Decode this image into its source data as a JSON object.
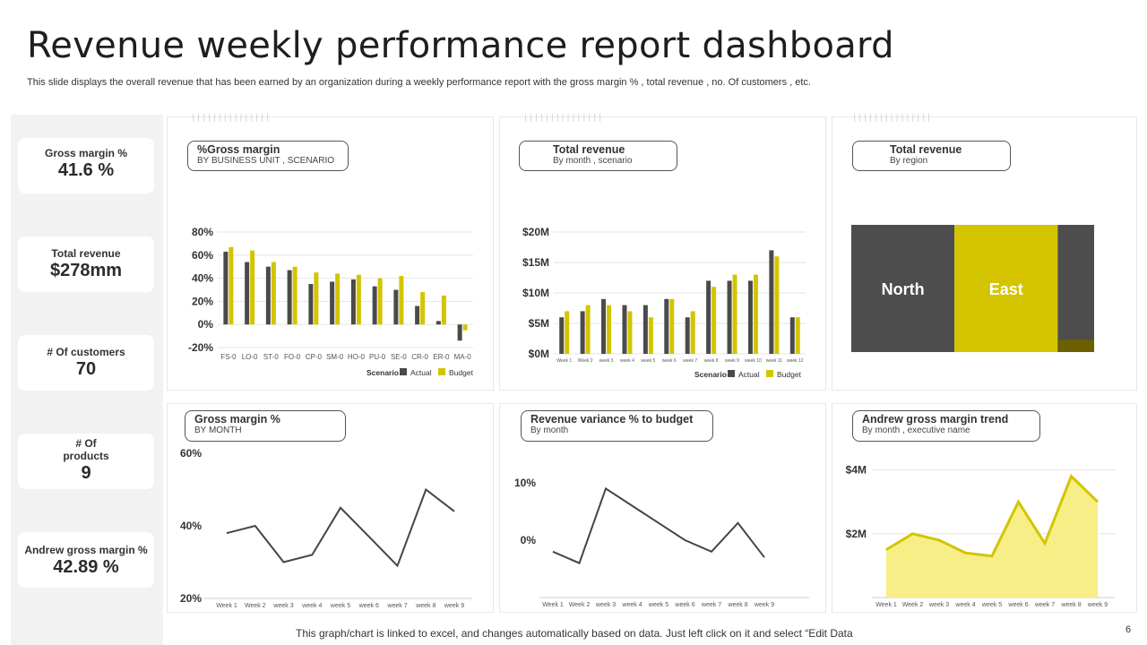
{
  "header": {
    "title": "Revenue weekly performance report dashboard",
    "subtitle": "This slide displays the overall revenue that has been earned by an organization during a weekly performance report with the gross margin % , total revenue , no. Of customers , etc."
  },
  "kpis": [
    {
      "label": "Gross margin %",
      "value": "41.6 %"
    },
    {
      "label": "Total revenue",
      "value": "$278mm"
    },
    {
      "label": "# Of customers",
      "value": "70"
    },
    {
      "label": "# Of products",
      "value": "9"
    },
    {
      "label": "Andrew gross margin %",
      "value": "42.89 %"
    }
  ],
  "colors": {
    "actual": "#4a4a4a",
    "budget": "#d4c400",
    "line": "#454545",
    "area_fill": "#f7ee87",
    "area_line": "#d4c400",
    "treemap_north": "#4d4d4d",
    "treemap_east": "#d4c400",
    "treemap_dark": "#6b5f00"
  },
  "decor": {
    "tick_strip": "|||||||||||||||"
  },
  "panels": {
    "gm_business": {
      "title": "%Gross  margin",
      "subtitle": "BY BUSINESS  UNIT  , SCENARIO"
    },
    "rev_month": {
      "title": "Total revenue",
      "subtitle": "By month  , scenario"
    },
    "rev_region": {
      "title": "Total revenue",
      "subtitle": "By region"
    },
    "gm_month": {
      "title": "Gross  margin %",
      "subtitle": "BY MONTH"
    },
    "variance": {
      "title": "Revenue variance % to budget",
      "subtitle": "By month"
    },
    "andrew": {
      "title": "Andrew gross  margin trend",
      "subtitle": "By month  , executive name"
    }
  },
  "chart_data": [
    {
      "id": "gm_business",
      "type": "bar",
      "categories": [
        "FS-0",
        "LO-0",
        "ST-0",
        "FO-0",
        "CP-0",
        "SM-0",
        "HO-0",
        "PU-0",
        "SE-0",
        "CR-0",
        "ER-0",
        "MA-0"
      ],
      "series": [
        {
          "name": "Actual",
          "values": [
            63,
            54,
            50,
            47,
            35,
            37,
            39,
            33,
            30,
            16,
            3,
            -14
          ]
        },
        {
          "name": "Budget",
          "values": [
            67,
            64,
            54,
            50,
            45,
            44,
            43,
            40,
            42,
            28,
            25,
            -5
          ]
        }
      ],
      "yticks": [
        "80%",
        "60%",
        "40%",
        "20%",
        "0%",
        "-20%"
      ],
      "ylim": [
        -20,
        80
      ],
      "legend": {
        "title": "Scenario",
        "items": [
          "Actual",
          "Budget"
        ],
        "position": "bottom-right"
      }
    },
    {
      "id": "rev_month",
      "type": "bar",
      "categories": [
        "Week 1",
        "Week 2",
        "week 3",
        "week 4",
        "week 5",
        "week 6",
        "week 7",
        "week 8",
        "week 9",
        "week 10",
        "week 11",
        "week 12"
      ],
      "series": [
        {
          "name": "Actual",
          "values": [
            6,
            7,
            9,
            8,
            8,
            9,
            6,
            12,
            12,
            12,
            17,
            6
          ]
        },
        {
          "name": "Budget",
          "values": [
            7,
            8,
            8,
            7,
            6,
            9,
            7,
            11,
            13,
            13,
            16,
            6
          ]
        }
      ],
      "yticks": [
        "$20M",
        "$15M",
        "$10M",
        "$5M",
        "$0M"
      ],
      "ylim": [
        0,
        20
      ],
      "legend": {
        "title": "Scenario",
        "items": [
          "Actual",
          "Budget"
        ],
        "position": "bottom-right"
      }
    },
    {
      "id": "rev_region",
      "type": "heatmap",
      "regions": [
        {
          "name": "North",
          "share": 0.425
        },
        {
          "name": "East",
          "share": 0.425
        },
        {
          "name": "",
          "share": 0.15
        }
      ]
    },
    {
      "id": "gm_month",
      "type": "line",
      "x": [
        "Week 1",
        "Week 2",
        "week 3",
        "week 4",
        "week 5",
        "week 6",
        "week 7",
        "week 8",
        "week 9"
      ],
      "values": [
        38,
        40,
        30,
        32,
        45,
        37,
        29,
        50,
        44
      ],
      "yticks": [
        "60%",
        "40%",
        "20%"
      ],
      "ylim": [
        20,
        60
      ]
    },
    {
      "id": "variance",
      "type": "line",
      "x": [
        "Week 1",
        "Week 2",
        "week 3",
        "week 4",
        "week 5",
        "week 6",
        "week 7",
        "week 8",
        "week 9"
      ],
      "values": [
        -2,
        -4,
        9,
        6,
        3,
        0,
        -2,
        3,
        -3
      ],
      "yticks": [
        "10%",
        "0%"
      ],
      "ylim": [
        -10,
        15
      ]
    },
    {
      "id": "andrew",
      "type": "area",
      "x": [
        "Week 1",
        "Week 2",
        "week 3",
        "week 4",
        "week 5",
        "week 6",
        "week 7",
        "week 8",
        "week 9"
      ],
      "values": [
        1.5,
        2.0,
        1.8,
        1.4,
        1.3,
        3.0,
        1.7,
        3.8,
        3.0
      ],
      "yticks": [
        "$4M",
        "$2M"
      ],
      "ylim": [
        0,
        5
      ]
    }
  ],
  "footer": {
    "note": "This graph/chart is linked to excel,  and changes automatically based on data. Just left click on it and select “Edit Data",
    "page": "6"
  }
}
